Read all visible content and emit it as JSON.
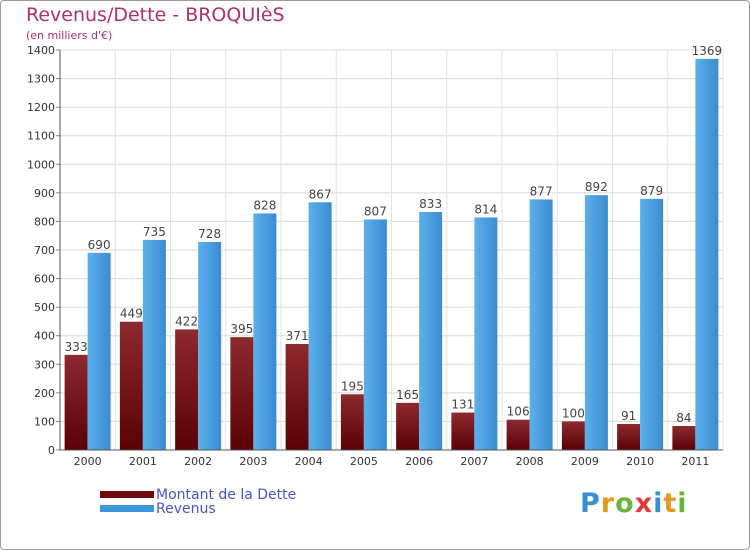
{
  "header": {
    "title": "Revenus/Dette - BROQUIèS",
    "subtitle": "(en milliers d'€)"
  },
  "chart_data": {
    "type": "bar",
    "categories": [
      "2000",
      "2001",
      "2002",
      "2003",
      "2004",
      "2005",
      "2006",
      "2007",
      "2008",
      "2009",
      "2010",
      "2011"
    ],
    "series": [
      {
        "name": "Montant de la Dette",
        "values": [
          333,
          449,
          422,
          395,
          371,
          195,
          165,
          131,
          106,
          100,
          91,
          84
        ],
        "color": "#7a1418"
      },
      {
        "name": "Revenus",
        "values": [
          690,
          735,
          728,
          828,
          867,
          807,
          833,
          814,
          877,
          892,
          879,
          1369
        ],
        "color": "#4aa0e0"
      }
    ],
    "yticks": [
      0,
      100,
      200,
      300,
      400,
      500,
      600,
      700,
      800,
      900,
      1000,
      1100,
      1200,
      1300,
      1400
    ],
    "ylim": [
      0,
      1400
    ],
    "grid": true,
    "legend_position": "bottom-left",
    "data_labels": true
  },
  "legend": {
    "items": [
      {
        "label": "Montant de la Dette",
        "color": "#6e0a0e"
      },
      {
        "label": "Revenus",
        "color": "#3d97da"
      }
    ]
  },
  "logo": {
    "letters": [
      "P",
      "r",
      "o",
      "x",
      "i",
      "t",
      "i"
    ],
    "colors": [
      "#3a8fd0",
      "#e59a1c",
      "#6bb43f",
      "#e03a3a",
      "#3a8fd0",
      "#e59a1c",
      "#6bb43f"
    ]
  }
}
